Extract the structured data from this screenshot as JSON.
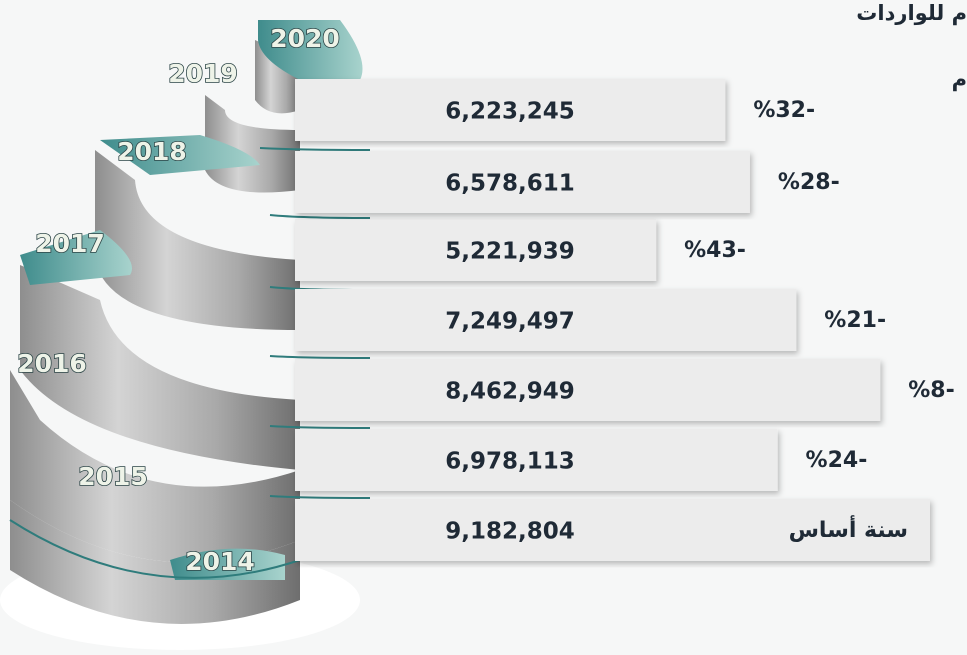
{
  "chart_data": {
    "type": "bar",
    "orientation": "horizontal",
    "title": "م للواردات",
    "subtitle": "م",
    "categories": [
      "2014",
      "2015",
      "2016",
      "2017",
      "2018",
      "2019",
      "2020"
    ],
    "values": [
      9182804,
      6978113,
      8462949,
      7249497,
      5221939,
      6578611,
      6223245
    ],
    "value_labels": [
      "9,182,804",
      "6,978,113",
      "8,462,949",
      "7,249,497",
      "5,221,939",
      "6,578,611",
      "6,223,245"
    ],
    "change_labels": [
      "سنة أساس",
      "%24-",
      "%8-",
      "%21-",
      "%43-",
      "%28-",
      "%32-"
    ],
    "color": "#ececec"
  }
}
